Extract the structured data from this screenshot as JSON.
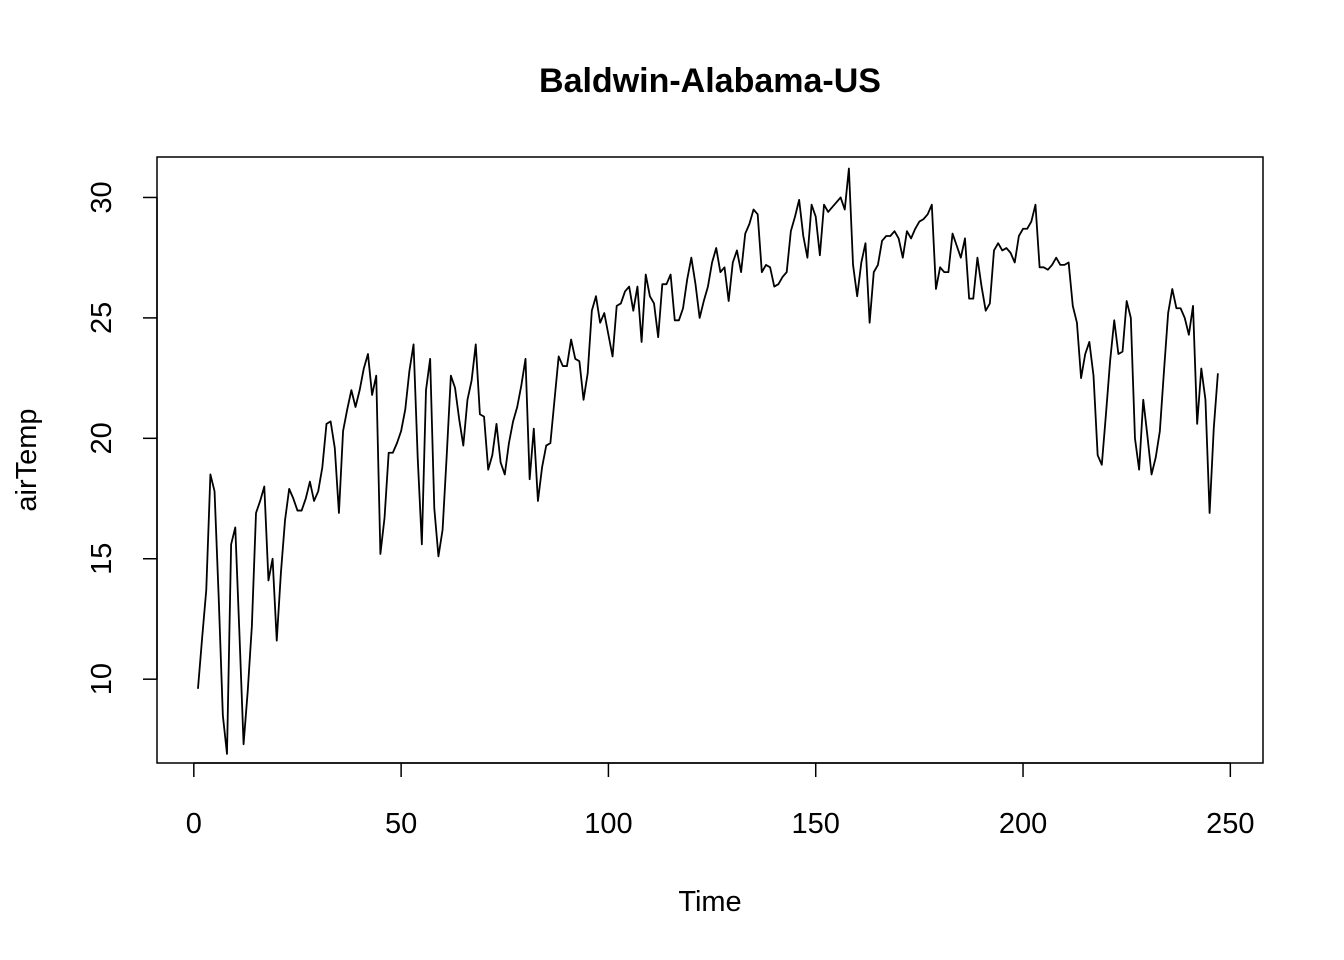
{
  "chart_data": {
    "type": "line",
    "title": "Baldwin-Alabama-US",
    "xlabel": "Time",
    "ylabel": "airTemp",
    "xlim": [
      -8.88,
      257.88
    ],
    "ylim": [
      6.52,
      31.68
    ],
    "xticks": [
      0,
      50,
      100,
      150,
      200,
      250
    ],
    "yticks": [
      10,
      15,
      20,
      25,
      30
    ],
    "xtick_labels": [
      "0",
      "50",
      "100",
      "150",
      "200",
      "250"
    ],
    "ytick_labels": [
      "10",
      "15",
      "20",
      "25",
      "30"
    ],
    "grid": false,
    "legend": "none",
    "line_color": "#000000",
    "series": [
      {
        "values": [
          9.6,
          11.7,
          13.7,
          18.5,
          17.8,
          13.4,
          8.5,
          6.9,
          15.6,
          16.3,
          11.9,
          7.3,
          9.5,
          12.2,
          16.9,
          17.4,
          18.0,
          14.1,
          15.0,
          11.6,
          14.4,
          16.6,
          17.9,
          17.5,
          17.0,
          17.0,
          17.5,
          18.2,
          17.4,
          17.8,
          18.8,
          20.6,
          20.7,
          19.6,
          16.9,
          20.3,
          21.2,
          22.0,
          21.3,
          22.0,
          22.9,
          23.5,
          21.8,
          22.6,
          15.2,
          16.7,
          19.4,
          19.4,
          19.8,
          20.3,
          21.2,
          22.8,
          23.9,
          19.2,
          15.6,
          22.0,
          23.3,
          17.1,
          15.1,
          16.2,
          19.3,
          22.6,
          22.1,
          20.8,
          19.7,
          21.6,
          22.4,
          23.9,
          21.0,
          20.9,
          18.7,
          19.3,
          20.6,
          19.0,
          18.5,
          19.8,
          20.7,
          21.3,
          22.2,
          23.3,
          18.3,
          20.4,
          17.4,
          18.8,
          19.7,
          19.8,
          21.6,
          23.4,
          23.0,
          23.0,
          24.1,
          23.3,
          23.2,
          21.6,
          22.7,
          25.3,
          25.9,
          24.8,
          25.2,
          24.3,
          23.4,
          25.5,
          25.6,
          26.1,
          26.3,
          25.3,
          26.3,
          24.0,
          26.8,
          25.9,
          25.6,
          24.2,
          26.4,
          26.4,
          26.8,
          24.9,
          24.9,
          25.4,
          26.6,
          27.5,
          26.4,
          25.0,
          25.7,
          26.3,
          27.3,
          27.9,
          26.9,
          27.1,
          25.7,
          27.3,
          27.8,
          26.9,
          28.5,
          28.9,
          29.5,
          29.3,
          26.9,
          27.2,
          27.1,
          26.3,
          26.4,
          26.7,
          26.9,
          28.6,
          29.2,
          29.9,
          28.4,
          27.5,
          29.7,
          29.2,
          27.6,
          29.7,
          29.4,
          29.6,
          29.8,
          30.0,
          29.5,
          31.2,
          27.2,
          25.9,
          27.3,
          28.1,
          24.8,
          26.9,
          27.2,
          28.2,
          28.4,
          28.4,
          28.6,
          28.3,
          27.5,
          28.6,
          28.3,
          28.7,
          29.0,
          29.1,
          29.3,
          29.7,
          26.2,
          27.1,
          26.9,
          26.9,
          28.5,
          28.0,
          27.5,
          28.3,
          25.8,
          25.8,
          27.5,
          26.3,
          25.3,
          25.6,
          27.8,
          28.1,
          27.8,
          27.9,
          27.7,
          27.3,
          28.4,
          28.7,
          28.7,
          29.0,
          29.7,
          27.1,
          27.1,
          27.0,
          27.2,
          27.5,
          27.2,
          27.2,
          27.3,
          25.5,
          24.8,
          22.5,
          23.5,
          24.0,
          22.6,
          19.3,
          18.9,
          21.0,
          23.2,
          24.9,
          23.5,
          23.6,
          25.7,
          25.0,
          20.0,
          18.7,
          21.6,
          20.1,
          18.5,
          19.2,
          20.3,
          22.8,
          25.2,
          26.2,
          25.4,
          25.4,
          25.0,
          24.3,
          25.5,
          20.6,
          22.9,
          21.6,
          16.9,
          20.4,
          22.7
        ]
      }
    ]
  }
}
